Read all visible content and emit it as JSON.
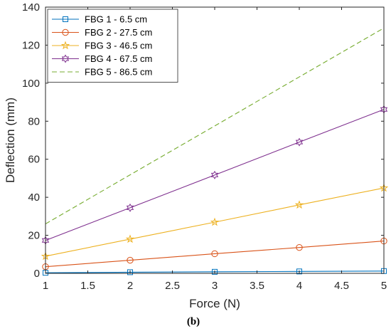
{
  "chart_data": {
    "type": "line",
    "xlabel": "Force (N)",
    "ylabel": "Deflection (mm)",
    "caption": "(b)",
    "xlim": [
      1,
      5
    ],
    "ylim": [
      0,
      140
    ],
    "x_ticks": [
      1,
      1.5,
      2,
      2.5,
      3,
      3.5,
      4,
      4.5,
      5
    ],
    "y_ticks": [
      0,
      20,
      40,
      60,
      80,
      100,
      120,
      140
    ],
    "grid": false,
    "legend_position": "top-left",
    "x": [
      1,
      2,
      3,
      4,
      5
    ],
    "series": [
      {
        "name": "FBG 1 - 6.5 cm",
        "values": [
          0.3,
          0.6,
          0.8,
          1.0,
          1.2
        ],
        "color": "#0072BD",
        "marker": "square",
        "line_style": "solid"
      },
      {
        "name": "FBG 2 - 27.5 cm",
        "values": [
          3.5,
          6.9,
          10.3,
          13.6,
          17.0
        ],
        "color": "#D95319",
        "marker": "circle",
        "line_style": "solid"
      },
      {
        "name": "FBG 3 - 46.5 cm",
        "values": [
          9.0,
          18.0,
          26.9,
          36.0,
          44.9
        ],
        "color": "#EDB120",
        "marker": "star",
        "line_style": "solid"
      },
      {
        "name": "FBG 4 - 67.5 cm",
        "values": [
          17.3,
          34.5,
          51.7,
          69.0,
          86.2
        ],
        "color": "#7E2F8E",
        "marker": "hexagram",
        "line_style": "solid"
      },
      {
        "name": "FBG 5 - 86.5 cm",
        "values": [
          26.0,
          51.8,
          77.5,
          103.3,
          129.0
        ],
        "color": "#77AC30",
        "marker": "none",
        "line_style": "dashed"
      }
    ]
  }
}
